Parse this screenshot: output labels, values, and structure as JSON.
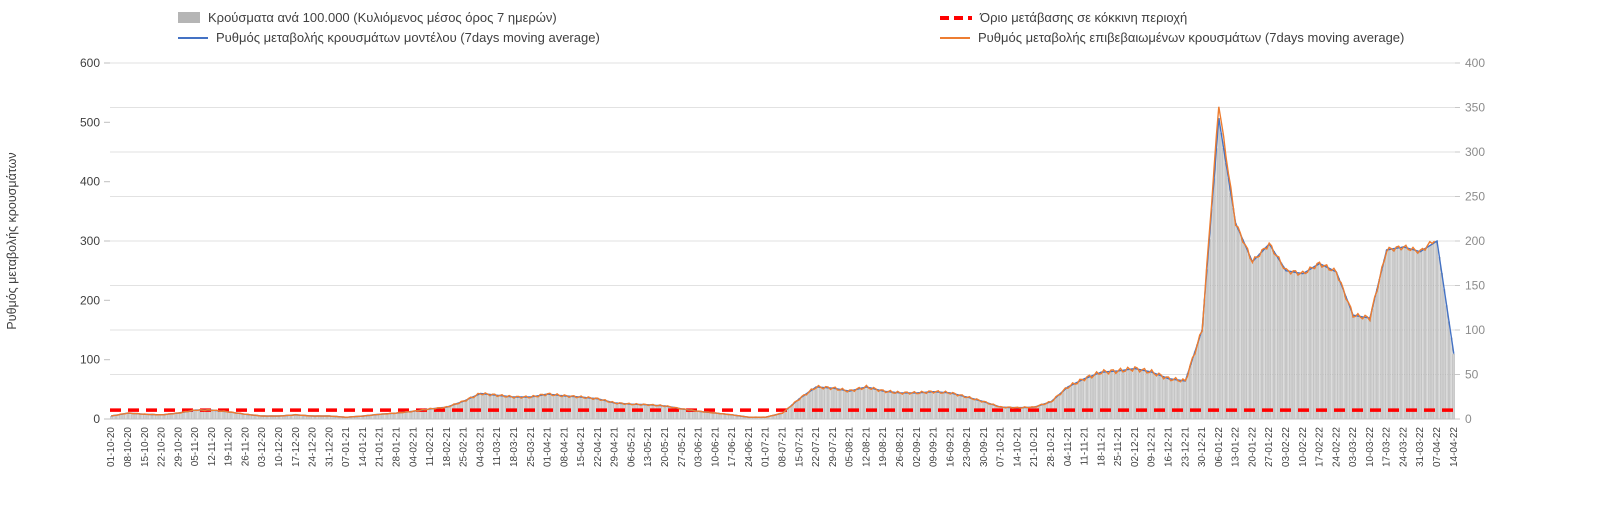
{
  "legend": {
    "items": [
      {
        "label": "Κρούσματα ανά 100.000 (Κυλιόμενος μέσος όρος 7 ημερών)",
        "swatch": "bar",
        "color": "#b5b5b5"
      },
      {
        "label": "Όριο μετάβασης σε κόκκινη περιοχή",
        "swatch": "dashed-line",
        "color": "#ff0000"
      },
      {
        "label": "Ρυθμός μεταβολής κρουσμάτων μοντέλου (7days moving average)",
        "swatch": "line",
        "color": "#4472c4"
      },
      {
        "label": "Ρυθμός μεταβολής επιβεβαιωμένων κρουσμάτων (7days moving average)",
        "swatch": "line",
        "color": "#ed7d31"
      }
    ]
  },
  "chart_data": {
    "type": "combo bar + line (dual axis)",
    "title": "",
    "left_axis": {
      "label": "Ρυθμός μεταβολής κρουσμάτων",
      "min": 0,
      "max": 600,
      "step": 100
    },
    "right_axis": {
      "label": "",
      "min": 0,
      "max": 400,
      "step": 50
    },
    "grid": "horizontal light gray",
    "legend_position": "top",
    "categories": [
      "01-10-20",
      "08-10-20",
      "15-10-20",
      "22-10-20",
      "29-10-20",
      "05-11-20",
      "12-11-20",
      "19-11-20",
      "26-11-20",
      "03-12-20",
      "10-12-20",
      "17-12-20",
      "24-12-20",
      "31-12-20",
      "07-01-21",
      "14-01-21",
      "21-01-21",
      "28-01-21",
      "04-02-21",
      "11-02-21",
      "18-02-21",
      "25-02-21",
      "04-03-21",
      "11-03-21",
      "18-03-21",
      "25-03-21",
      "01-04-21",
      "08-04-21",
      "15-04-21",
      "22-04-21",
      "29-04-21",
      "06-05-21",
      "13-05-21",
      "20-05-21",
      "27-05-21",
      "03-06-21",
      "10-06-21",
      "17-06-21",
      "24-06-21",
      "01-07-21",
      "08-07-21",
      "15-07-21",
      "22-07-21",
      "29-07-21",
      "05-08-21",
      "12-08-21",
      "19-08-21",
      "26-08-21",
      "02-09-21",
      "09-09-21",
      "16-09-21",
      "23-09-21",
      "30-09-21",
      "07-10-21",
      "14-10-21",
      "21-10-21",
      "28-10-21",
      "04-11-21",
      "11-11-21",
      "18-11-21",
      "25-11-21",
      "02-12-21",
      "09-12-21",
      "16-12-21",
      "23-12-21",
      "30-12-21",
      "06-01-22",
      "13-01-22",
      "20-01-22",
      "27-01-22",
      "03-02-22",
      "10-02-22",
      "17-02-22",
      "24-02-22",
      "03-03-22",
      "10-03-22",
      "17-03-22",
      "24-03-22",
      "31-03-22",
      "07-04-22",
      "14-04-22"
    ],
    "series": [
      {
        "key": "cases-per-100k",
        "name": "Κρούσματα ανά 100.000 (Κυλιόμενος μέσος όρος 7 ημερών)",
        "type": "bar",
        "axis": "right",
        "color": "#dcdcdc",
        "stroke": "#a0a0a0",
        "values": [
          3,
          7,
          5,
          5,
          7,
          10,
          10,
          8,
          5,
          3,
          3,
          5,
          3,
          3,
          2,
          3,
          5,
          7,
          9,
          11,
          13,
          20,
          29,
          27,
          25,
          25,
          28,
          26,
          25,
          23,
          18,
          17,
          16,
          15,
          11,
          9,
          7,
          5,
          2,
          2,
          7,
          23,
          36,
          35,
          31,
          36,
          31,
          29,
          29,
          31,
          29,
          25,
          19,
          13,
          13,
          13,
          19,
          36,
          45,
          53,
          54,
          57,
          53,
          45,
          43,
          100,
          338,
          220,
          177,
          197,
          167,
          163,
          175,
          165,
          117,
          113,
          190,
          193,
          188,
          200,
          73
        ]
      },
      {
        "key": "model-rate",
        "name": "Ρυθμός μεταβολής κρουσμάτων μοντέλου (7days moving average)",
        "type": "line",
        "axis": "left",
        "color": "#4472c4",
        "jitter": false,
        "values": [
          5,
          10,
          8,
          7,
          10,
          15,
          15,
          12,
          8,
          5,
          5,
          7,
          5,
          5,
          3,
          5,
          8,
          10,
          13,
          17,
          20,
          30,
          43,
          40,
          37,
          37,
          42,
          39,
          37,
          34,
          27,
          25,
          24,
          22,
          17,
          13,
          10,
          7,
          3,
          3,
          10,
          34,
          54,
          52,
          47,
          54,
          47,
          44,
          44,
          46,
          44,
          37,
          29,
          20,
          19,
          20,
          29,
          54,
          68,
          79,
          81,
          85,
          79,
          68,
          64,
          150,
          507,
          330,
          265,
          295,
          250,
          245,
          262,
          248,
          175,
          170,
          285,
          290,
          282,
          300,
          110
        ]
      },
      {
        "key": "confirmed-rate",
        "name": "Ρυθμός μεταβολής επιβεβαιωμένων κρουσμάτων (7days moving average)",
        "type": "line",
        "axis": "left",
        "color": "#ed7d31",
        "jitter": true,
        "values": [
          5,
          10,
          8,
          7,
          10,
          15,
          15,
          12,
          8,
          5,
          5,
          7,
          5,
          5,
          3,
          5,
          8,
          10,
          13,
          17,
          20,
          30,
          43,
          40,
          37,
          37,
          42,
          39,
          37,
          34,
          27,
          25,
          24,
          22,
          17,
          13,
          10,
          7,
          3,
          3,
          10,
          34,
          54,
          52,
          47,
          54,
          47,
          44,
          44,
          46,
          44,
          37,
          29,
          20,
          19,
          20,
          29,
          54,
          68,
          79,
          81,
          85,
          79,
          68,
          64,
          150,
          530,
          330,
          265,
          295,
          250,
          245,
          262,
          248,
          175,
          170,
          285,
          290,
          282,
          305,
          null
        ]
      }
    ],
    "threshold": {
      "name": "Όριο μετάβασης σε κόκκινη περιοχή",
      "value": 15,
      "axis": "left",
      "color": "#ff0000",
      "style": "dashed"
    }
  }
}
